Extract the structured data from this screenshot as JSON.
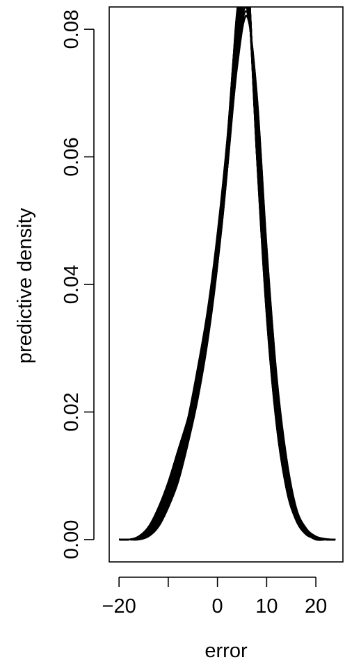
{
  "chart_data": {
    "type": "line",
    "title": "",
    "xlabel": "error",
    "ylabel": "predictive density",
    "xlim": [
      -22,
      25.5
    ],
    "ylim": [
      -0.0035,
      0.0835
    ],
    "x_ticks": [
      -20,
      -10,
      0,
      10,
      20
    ],
    "x_tick_labels": [
      "−20",
      "",
      "0",
      "10",
      "20"
    ],
    "y_ticks": [
      0.0,
      0.02,
      0.04,
      0.06,
      0.08
    ],
    "y_tick_labels": [
      "0.00",
      "0.02",
      "0.04",
      "0.06",
      "0.08"
    ],
    "grid": false,
    "legend": "none",
    "line_color": "#000000",
    "series_description": "many overlapping predictive density curves",
    "x": [
      -20,
      -18,
      -16,
      -14,
      -12,
      -10,
      -8,
      -6,
      -4,
      -2,
      0,
      2,
      4,
      6,
      8,
      10,
      12,
      14,
      16,
      18,
      20,
      22,
      24
    ],
    "series": [
      {
        "values": [
          0.0,
          0.0,
          0.0005,
          0.002,
          0.005,
          0.009,
          0.014,
          0.019,
          0.025,
          0.032,
          0.043,
          0.058,
          0.078,
          0.09,
          0.06,
          0.035,
          0.018,
          0.008,
          0.003,
          0.001,
          0.0,
          0.0,
          0.0
        ]
      },
      {
        "values": [
          0.0,
          0.0,
          0.0002,
          0.001,
          0.003,
          0.006,
          0.011,
          0.017,
          0.024,
          0.033,
          0.045,
          0.06,
          0.08,
          0.088,
          0.063,
          0.038,
          0.02,
          0.009,
          0.0035,
          0.001,
          0.0002,
          0.0,
          0.0
        ]
      },
      {
        "values": [
          0.0,
          0.0,
          0.0,
          0.0005,
          0.002,
          0.005,
          0.009,
          0.015,
          0.022,
          0.031,
          0.043,
          0.06,
          0.083,
          0.086,
          0.066,
          0.042,
          0.023,
          0.011,
          0.0045,
          0.0015,
          0.0004,
          0.0,
          0.0
        ]
      },
      {
        "values": [
          0.0,
          0.0,
          0.0003,
          0.0015,
          0.004,
          0.008,
          0.013,
          0.019,
          0.027,
          0.036,
          0.048,
          0.063,
          0.082,
          0.087,
          0.06,
          0.036,
          0.019,
          0.008,
          0.003,
          0.0008,
          0.0002,
          0.0,
          0.0
        ]
      },
      {
        "values": [
          0.0,
          0.0,
          0.0001,
          0.0008,
          0.0025,
          0.0055,
          0.01,
          0.016,
          0.023,
          0.032,
          0.044,
          0.058,
          0.074,
          0.082,
          0.07,
          0.046,
          0.026,
          0.013,
          0.005,
          0.0018,
          0.0005,
          0.0001,
          0.0
        ]
      },
      {
        "values": [
          0.0,
          0.0,
          0.0002,
          0.0012,
          0.0035,
          0.007,
          0.012,
          0.018,
          0.026,
          0.035,
          0.047,
          0.062,
          0.08,
          0.085,
          0.064,
          0.04,
          0.021,
          0.01,
          0.004,
          0.0012,
          0.0003,
          0.0,
          0.0
        ]
      }
    ]
  }
}
